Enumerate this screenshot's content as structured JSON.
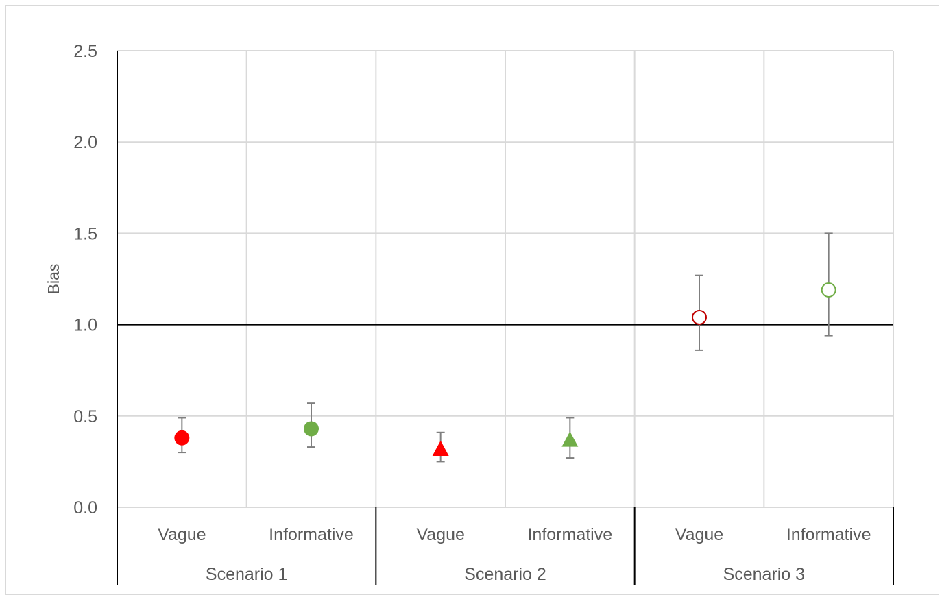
{
  "chart_data": {
    "type": "scatter",
    "title": "",
    "ylabel": "Bias",
    "ylim": [
      0,
      2.5
    ],
    "yticks": [
      "0.0",
      "0.5",
      "1.0",
      "1.5",
      "2.0",
      "2.5"
    ],
    "ytick_values": [
      0,
      0.5,
      1.0,
      1.5,
      2.0,
      2.5
    ],
    "reference_line": 1.0,
    "grid": true,
    "groups": [
      "Scenario 1",
      "Scenario 2",
      "Scenario 3"
    ],
    "categories": [
      "Vague",
      "Informative",
      "Vague",
      "Informative",
      "Vague",
      "Informative"
    ],
    "points": [
      {
        "group": "Scenario 1",
        "prior": "Vague",
        "value": 0.38,
        "lower": 0.3,
        "upper": 0.49,
        "marker": "circle",
        "fill": "filled",
        "color": "#ff0000"
      },
      {
        "group": "Scenario 1",
        "prior": "Informative",
        "value": 0.43,
        "lower": 0.33,
        "upper": 0.57,
        "marker": "circle",
        "fill": "filled",
        "color": "#70ad47"
      },
      {
        "group": "Scenario 2",
        "prior": "Vague",
        "value": 0.32,
        "lower": 0.25,
        "upper": 0.41,
        "marker": "triangle",
        "fill": "filled",
        "color": "#ff0000"
      },
      {
        "group": "Scenario 2",
        "prior": "Informative",
        "value": 0.37,
        "lower": 0.27,
        "upper": 0.49,
        "marker": "triangle",
        "fill": "filled",
        "color": "#70ad47"
      },
      {
        "group": "Scenario 3",
        "prior": "Vague",
        "value": 1.04,
        "lower": 0.86,
        "upper": 1.27,
        "marker": "circle",
        "fill": "hollow",
        "color": "#c00000"
      },
      {
        "group": "Scenario 3",
        "prior": "Informative",
        "value": 1.19,
        "lower": 0.94,
        "upper": 1.5,
        "marker": "circle",
        "fill": "hollow",
        "color": "#70ad47"
      }
    ],
    "errorbar_color": "#7f7f7f",
    "gridline_color": "#d9d9d9"
  }
}
